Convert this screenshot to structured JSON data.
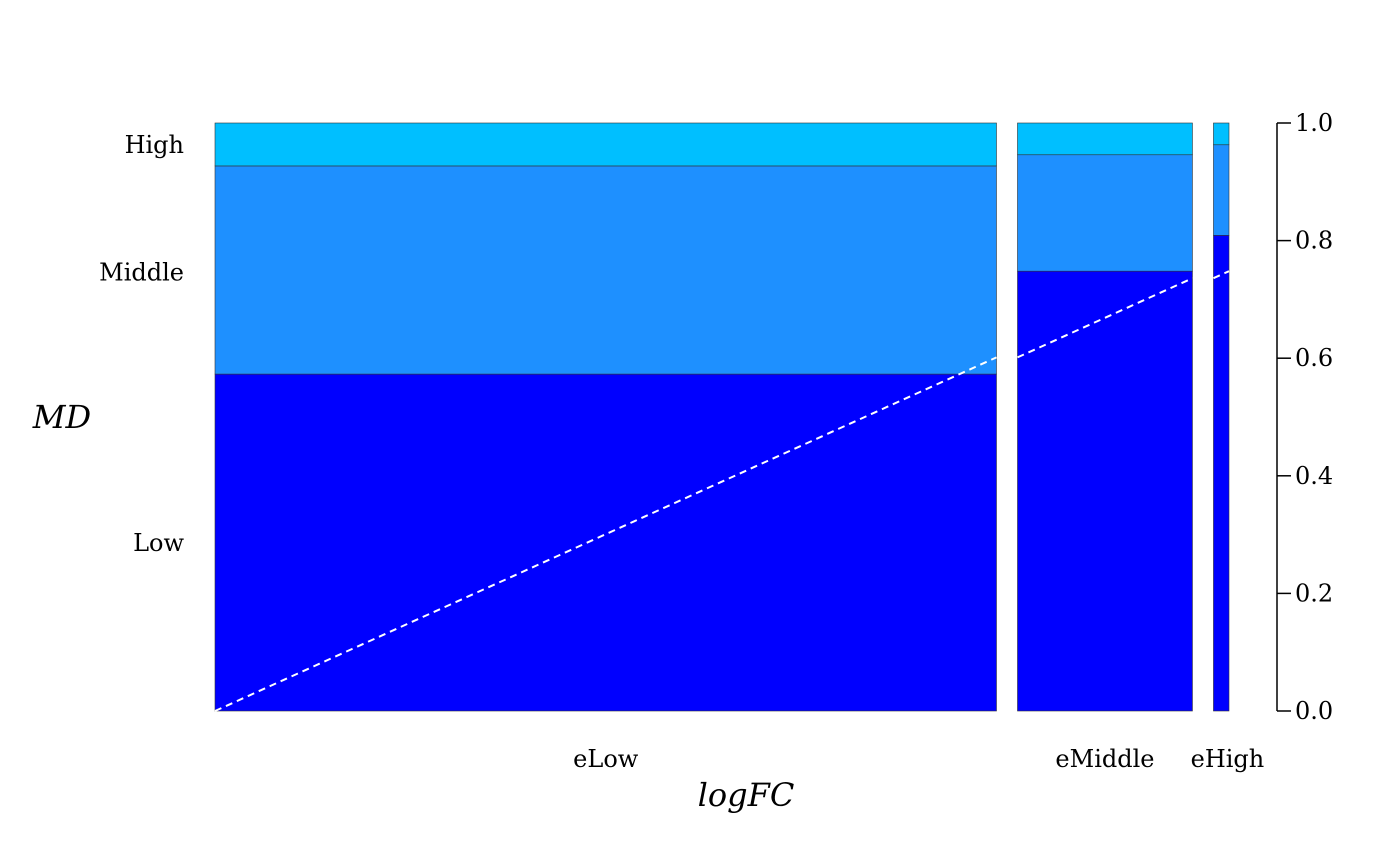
{
  "chart_data": {
    "type": "spinogram",
    "xlabel": "logFC",
    "ylabel": "MD",
    "ylim": [
      0,
      1
    ],
    "y_ticks": [
      0.0,
      0.2,
      0.4,
      0.6,
      0.8,
      1.0
    ],
    "y_tick_labels": [
      "0.0",
      "0.2",
      "0.4",
      "0.6",
      "0.8",
      "1.0"
    ],
    "x_breaks": [
      0,
      0.804,
      0.984,
      1.0
    ],
    "categories": [
      "eLow",
      "eMiddle",
      "eHigh"
    ],
    "levels": [
      "Low",
      "Middle",
      "High"
    ],
    "series": [
      {
        "name": "Low",
        "values": [
          0.573,
          0.748,
          0.809
        ]
      },
      {
        "name": "Middle",
        "values": [
          0.354,
          0.198,
          0.154
        ]
      },
      {
        "name": "High",
        "values": [
          0.073,
          0.054,
          0.037
        ]
      }
    ],
    "level_label_positions": [
      0.286,
      0.746,
      0.963
    ],
    "colors": {
      "Low": "#0000ff",
      "Middle": "#1e90ff",
      "High": "#00bfff"
    },
    "reference_line": {
      "style": "dashed",
      "color": "#ffffff",
      "from": [
        0,
        0
      ],
      "to": [
        1,
        0.748
      ]
    }
  }
}
